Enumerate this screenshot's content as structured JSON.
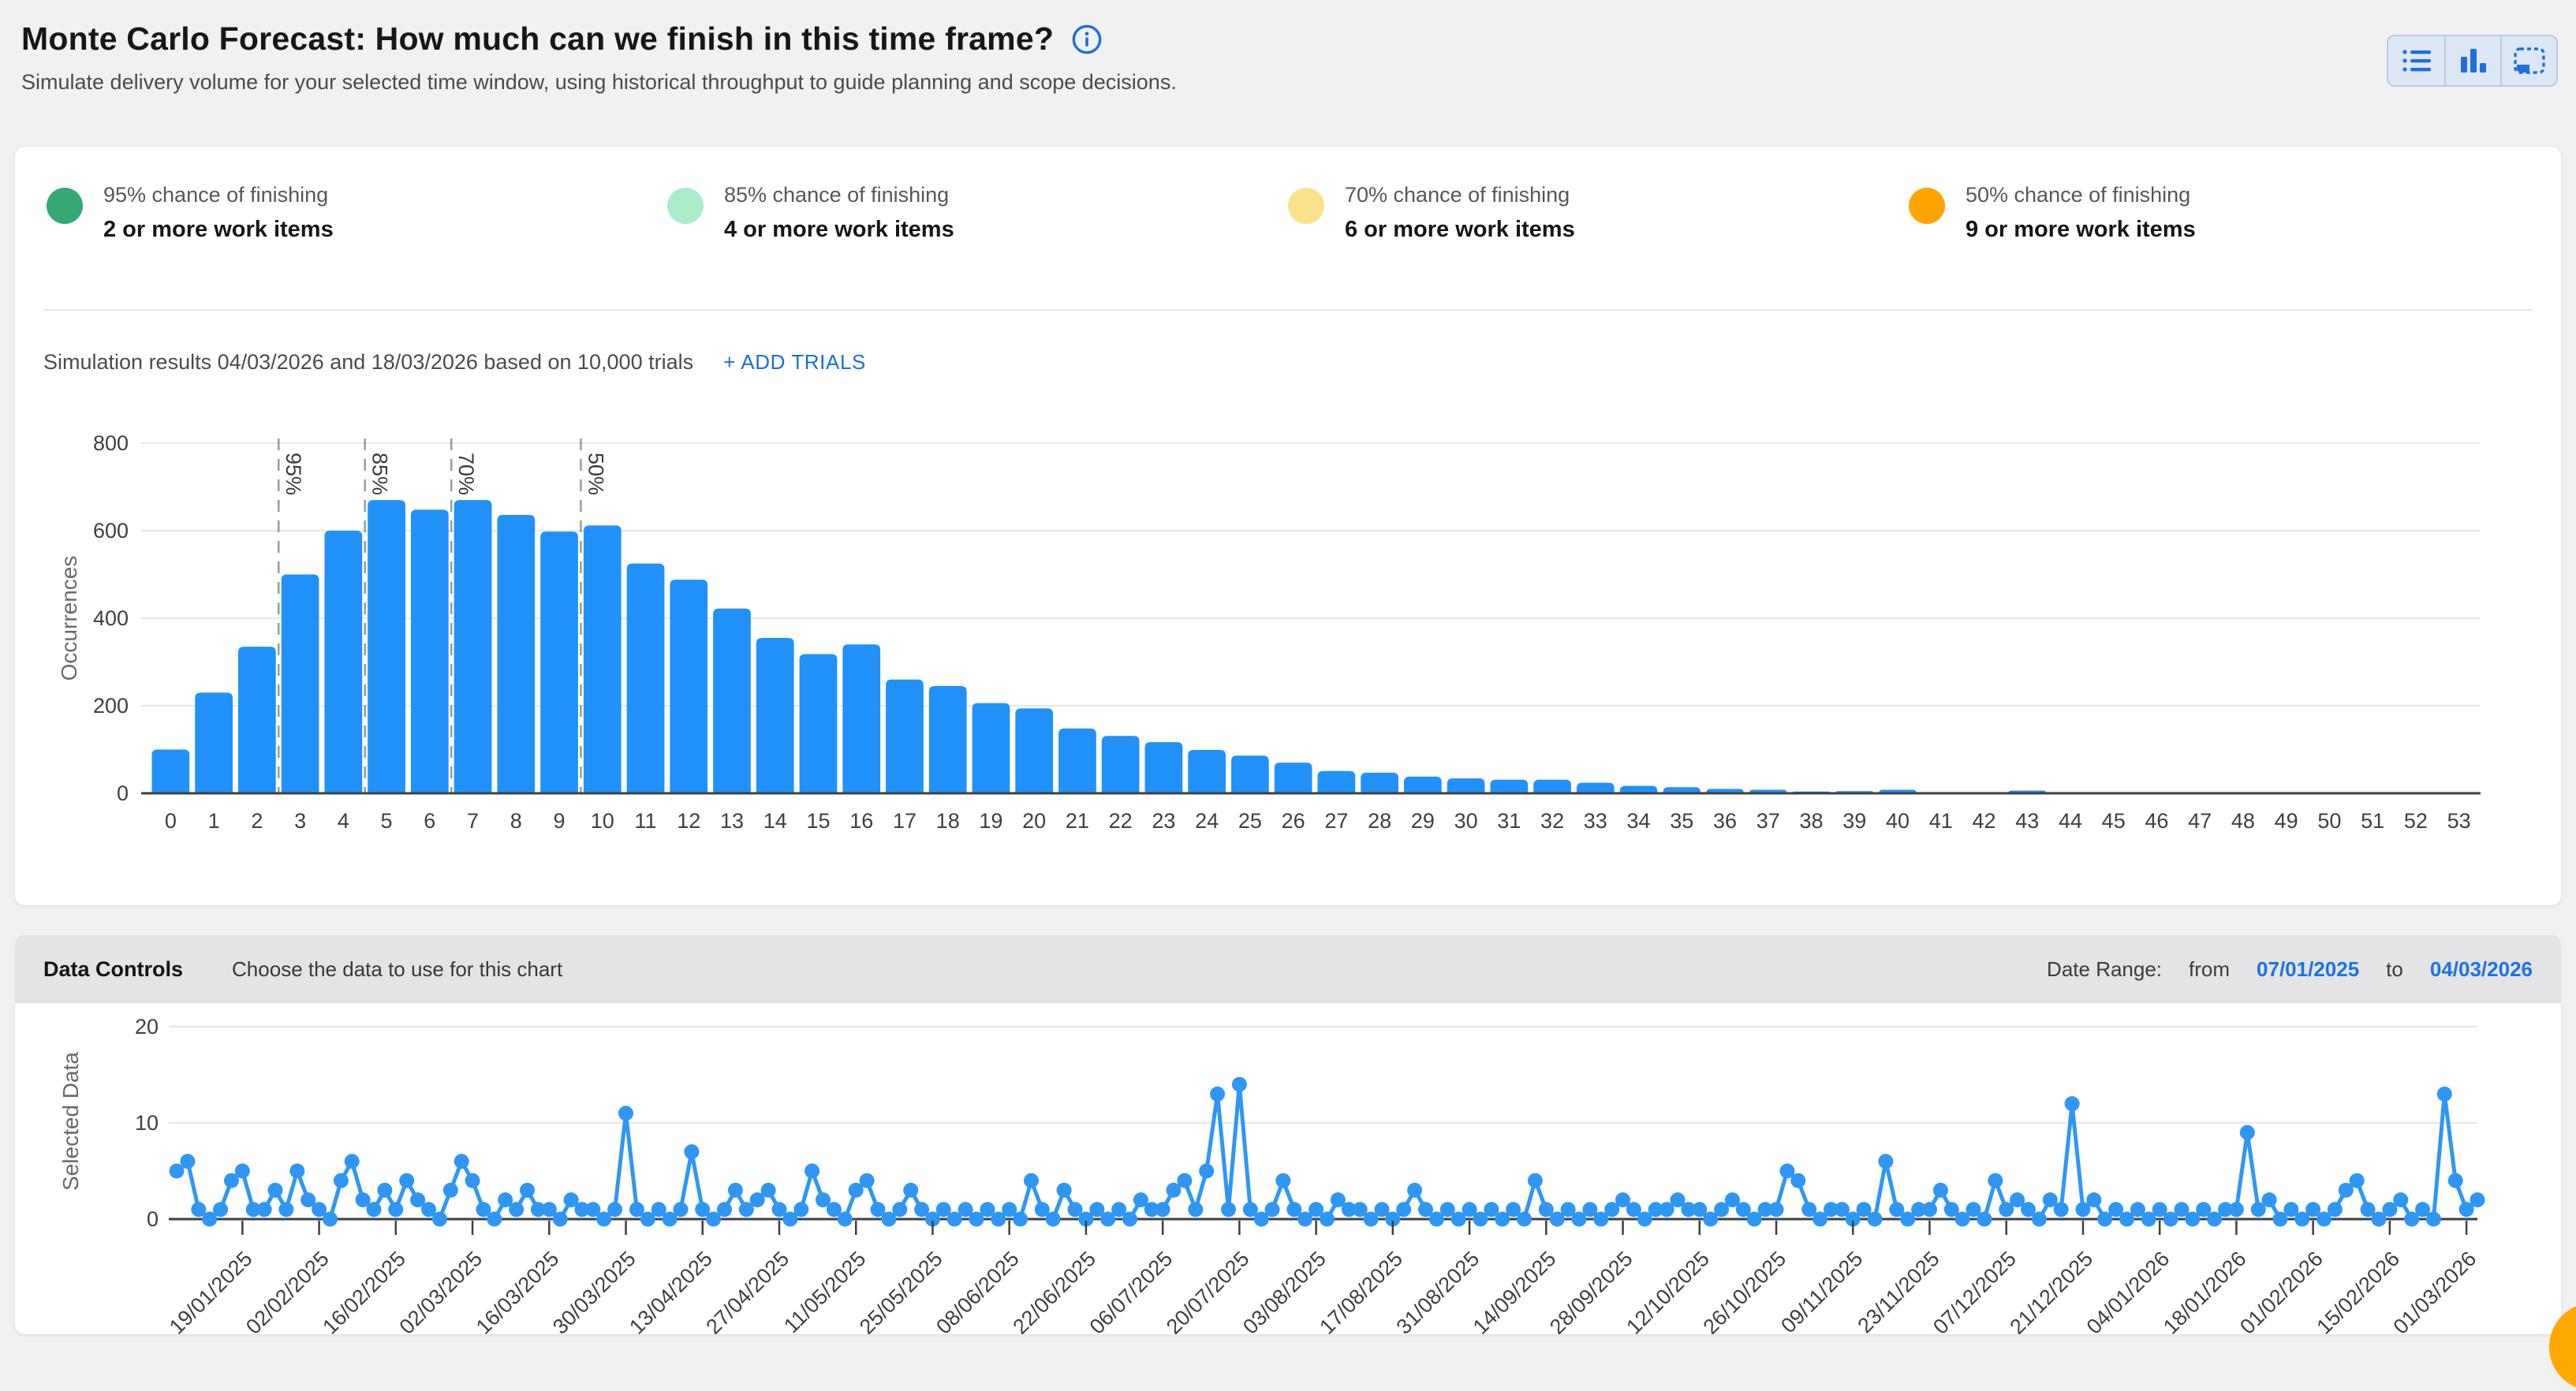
{
  "header": {
    "title": "Monte Carlo Forecast: How much can we finish in this time frame?",
    "subtitle": "Simulate delivery volume for your selected time window, using historical throughput to guide planning and scope decisions.",
    "view_buttons": [
      "list-view",
      "bar-chart-view",
      "select-area-view"
    ]
  },
  "forecast_legend": [
    {
      "percent": "95% chance of finishing",
      "items": "2 or more work items",
      "color": "#36a873"
    },
    {
      "percent": "85% chance of finishing",
      "items": "4 or more work items",
      "color": "#a9edcb"
    },
    {
      "percent": "70% chance of finishing",
      "items": "6 or more work items",
      "color": "#fbe18c"
    },
    {
      "percent": "50% chance of finishing",
      "items": "9 or more work items",
      "color": "#ffa502"
    }
  ],
  "simulation": {
    "summary": "Simulation results 04/03/2026 and 18/03/2026 based on 10,000 trials",
    "add_trials_label": "+ ADD TRIALS"
  },
  "data_controls": {
    "title": "Data Controls",
    "subtitle": "Choose the data to use for this chart",
    "date_range_label": "Date Range:",
    "from_label": "from",
    "from_date": "07/01/2025",
    "to_label": "to",
    "to_date": "04/03/2026"
  },
  "chart_data": [
    {
      "type": "bar",
      "title": "Monte Carlo simulation occurrences per completed work-item count",
      "xlabel": "",
      "ylabel": "Occurrences",
      "ylim": [
        0,
        800
      ],
      "yticks": [
        0,
        200,
        400,
        600,
        800
      ],
      "grid": true,
      "bar_color": "#2191fa",
      "categories": [
        0,
        1,
        2,
        3,
        4,
        5,
        6,
        7,
        8,
        9,
        10,
        11,
        12,
        13,
        14,
        15,
        16,
        17,
        18,
        19,
        20,
        21,
        22,
        23,
        24,
        25,
        26,
        27,
        28,
        29,
        30,
        31,
        32,
        33,
        34,
        35,
        36,
        37,
        38,
        39,
        40,
        41,
        42,
        43,
        44,
        45,
        46,
        47,
        48,
        49,
        50,
        51,
        52,
        53
      ],
      "values": [
        100,
        230,
        335,
        500,
        600,
        670,
        648,
        670,
        636,
        598,
        612,
        525,
        488,
        422,
        355,
        318,
        340,
        260,
        245,
        206,
        194,
        148,
        131,
        117,
        99,
        86,
        70,
        51,
        47,
        38,
        34,
        31,
        31,
        24,
        17,
        14,
        10,
        8,
        4,
        5,
        8,
        0,
        0,
        6,
        0,
        0,
        0,
        0,
        0,
        0,
        0,
        0,
        0,
        0
      ],
      "percentile_markers": [
        {
          "label": "95%",
          "after_bar": 2
        },
        {
          "label": "85%",
          "after_bar": 4
        },
        {
          "label": "70%",
          "after_bar": 6
        },
        {
          "label": "50%",
          "after_bar": 9
        }
      ]
    },
    {
      "type": "line",
      "title": "Historical daily throughput (selected data)",
      "xlabel": "",
      "ylabel": "Selected Data",
      "ylim": [
        0,
        20
      ],
      "yticks": [
        0,
        10,
        20
      ],
      "grid": true,
      "line_color": "#2e97f5",
      "x_tick_start_index": 6,
      "x_tick_every": 7,
      "x_tick_labels": [
        "19/01/2025",
        "02/02/2025",
        "16/02/2025",
        "02/03/2025",
        "16/03/2025",
        "30/03/2025",
        "13/04/2025",
        "27/04/2025",
        "11/05/2025",
        "25/05/2025",
        "08/06/2025",
        "22/06/2025",
        "06/07/2025",
        "20/07/2025",
        "03/08/2025",
        "17/08/2025",
        "31/08/2025",
        "14/09/2025",
        "28/09/2025",
        "12/10/2025",
        "26/10/2025",
        "09/11/2025",
        "23/11/2025",
        "07/12/2025",
        "21/12/2025",
        "04/01/2026",
        "18/01/2026",
        "01/02/2026",
        "15/02/2026",
        "01/03/2026"
      ],
      "values": [
        5,
        6,
        1,
        0,
        1,
        4,
        5,
        1,
        1,
        3,
        1,
        5,
        2,
        1,
        0,
        4,
        6,
        2,
        1,
        3,
        1,
        4,
        2,
        1,
        0,
        3,
        6,
        4,
        1,
        0,
        2,
        1,
        3,
        1,
        1,
        0,
        2,
        1,
        1,
        0,
        1,
        11,
        1,
        0,
        1,
        0,
        1,
        7,
        1,
        0,
        1,
        3,
        1,
        2,
        3,
        1,
        0,
        1,
        5,
        2,
        1,
        0,
        3,
        4,
        1,
        0,
        1,
        3,
        1,
        0,
        1,
        0,
        1,
        0,
        1,
        0,
        1,
        0,
        4,
        1,
        0,
        3,
        1,
        0,
        1,
        0,
        1,
        0,
        2,
        1,
        1,
        3,
        4,
        1,
        5,
        13,
        1,
        14,
        1,
        0,
        1,
        4,
        1,
        0,
        1,
        0,
        2,
        1,
        1,
        0,
        1,
        0,
        1,
        3,
        1,
        0,
        1,
        0,
        1,
        0,
        1,
        0,
        1,
        0,
        4,
        1,
        0,
        1,
        0,
        1,
        0,
        1,
        2,
        1,
        0,
        1,
        1,
        2,
        1,
        1,
        0,
        1,
        2,
        1,
        0,
        1,
        1,
        5,
        4,
        1,
        0,
        1,
        1,
        0,
        1,
        0,
        6,
        1,
        0,
        1,
        1,
        3,
        1,
        0,
        1,
        0,
        4,
        1,
        2,
        1,
        0,
        2,
        1,
        12,
        1,
        2,
        0,
        1,
        0,
        1,
        0,
        1,
        0,
        1,
        0,
        1,
        0,
        1,
        1,
        9,
        1,
        2,
        0,
        1,
        0,
        1,
        0,
        1,
        3,
        4,
        1,
        0,
        1,
        2,
        0,
        1,
        0,
        13,
        4,
        1,
        2
      ]
    }
  ],
  "colors": {
    "accent_blue": "#1b6fd8",
    "bar_blue": "#2191fa",
    "fab_orange": "#ffa800",
    "page_bg": "#f1f1f2",
    "controls_bg": "#e4e4e6"
  }
}
